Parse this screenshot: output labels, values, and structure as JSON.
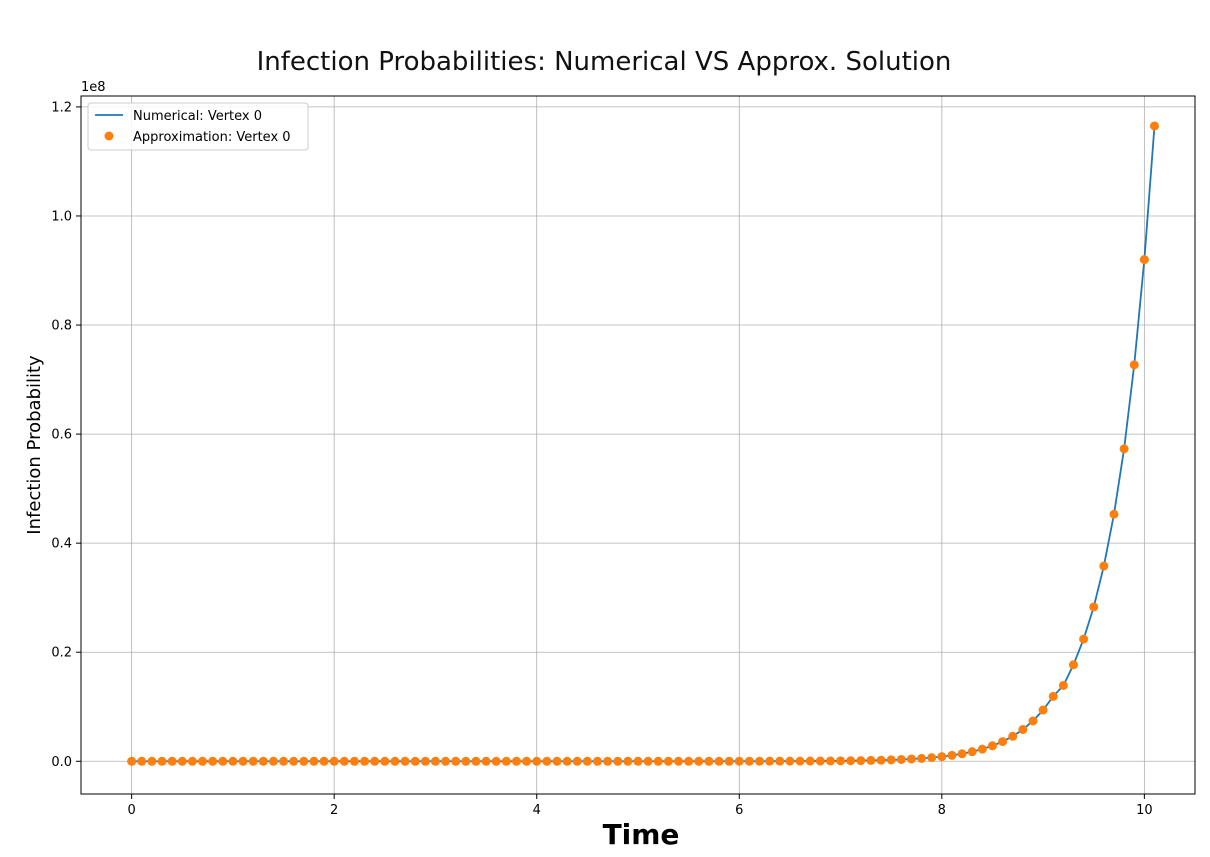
{
  "chart_data": {
    "type": "line",
    "title": "Infection Probabilities: Numerical VS Approx. Solution",
    "xlabel": "Time",
    "ylabel": "Infection Probability",
    "y_offset_label": "1e8",
    "xlim": [
      -0.5,
      10.5
    ],
    "ylim": [
      -0.06,
      1.22
    ],
    "y_scale_unit": 100000000,
    "grid": true,
    "legend_position": "top-left",
    "x_ticks": [
      0,
      2,
      4,
      6,
      8,
      10
    ],
    "x_tick_labels": [
      "0",
      "2",
      "4",
      "6",
      "8",
      "10"
    ],
    "y_ticks": [
      0.0,
      0.2,
      0.4,
      0.6,
      0.8,
      1.0,
      1.2
    ],
    "y_tick_labels": [
      "0.0",
      "0.2",
      "0.4",
      "0.6",
      "0.8",
      "1.0",
      "1.2"
    ],
    "x_start": 0,
    "x_step": 0.1,
    "y_values_1e8": [
      0,
      0,
      0,
      0,
      0,
      0,
      0,
      0,
      0,
      0,
      0,
      0,
      0,
      0,
      0,
      0,
      0,
      0,
      0,
      0,
      0,
      0,
      0,
      0,
      0,
      0,
      0,
      0,
      0,
      0,
      0,
      0,
      0,
      0,
      0,
      0,
      0,
      0,
      0,
      0,
      0,
      0,
      0,
      0,
      0,
      0,
      0,
      0,
      0,
      0,
      0,
      0,
      0,
      0,
      0,
      0,
      0,
      0,
      0,
      0,
      0.0001,
      0.0001,
      0.0001,
      0.0002,
      0.0002,
      0.0003,
      0.0003,
      0.0004,
      0.0005,
      0.0006,
      0.0008,
      0.001,
      0.0013,
      0.0016,
      0.002,
      0.0026,
      0.0033,
      0.0042,
      0.0053,
      0.0067,
      0.0085,
      0.0109,
      0.0138,
      0.0176,
      0.0223,
      0.0284,
      0.0361,
      0.0458,
      0.0582,
      0.0739,
      0.094,
      0.119,
      0.139,
      0.177,
      0.224,
      0.283,
      0.358,
      0.453,
      0.573,
      0.727,
      0.92,
      1.165
    ],
    "series": [
      {
        "name": "Numerical: Vertex 0",
        "style": "line",
        "color": "#1f77b4"
      },
      {
        "name": "Approximation: Vertex 0",
        "style": "markers",
        "color": "#ff7f0e"
      }
    ]
  }
}
